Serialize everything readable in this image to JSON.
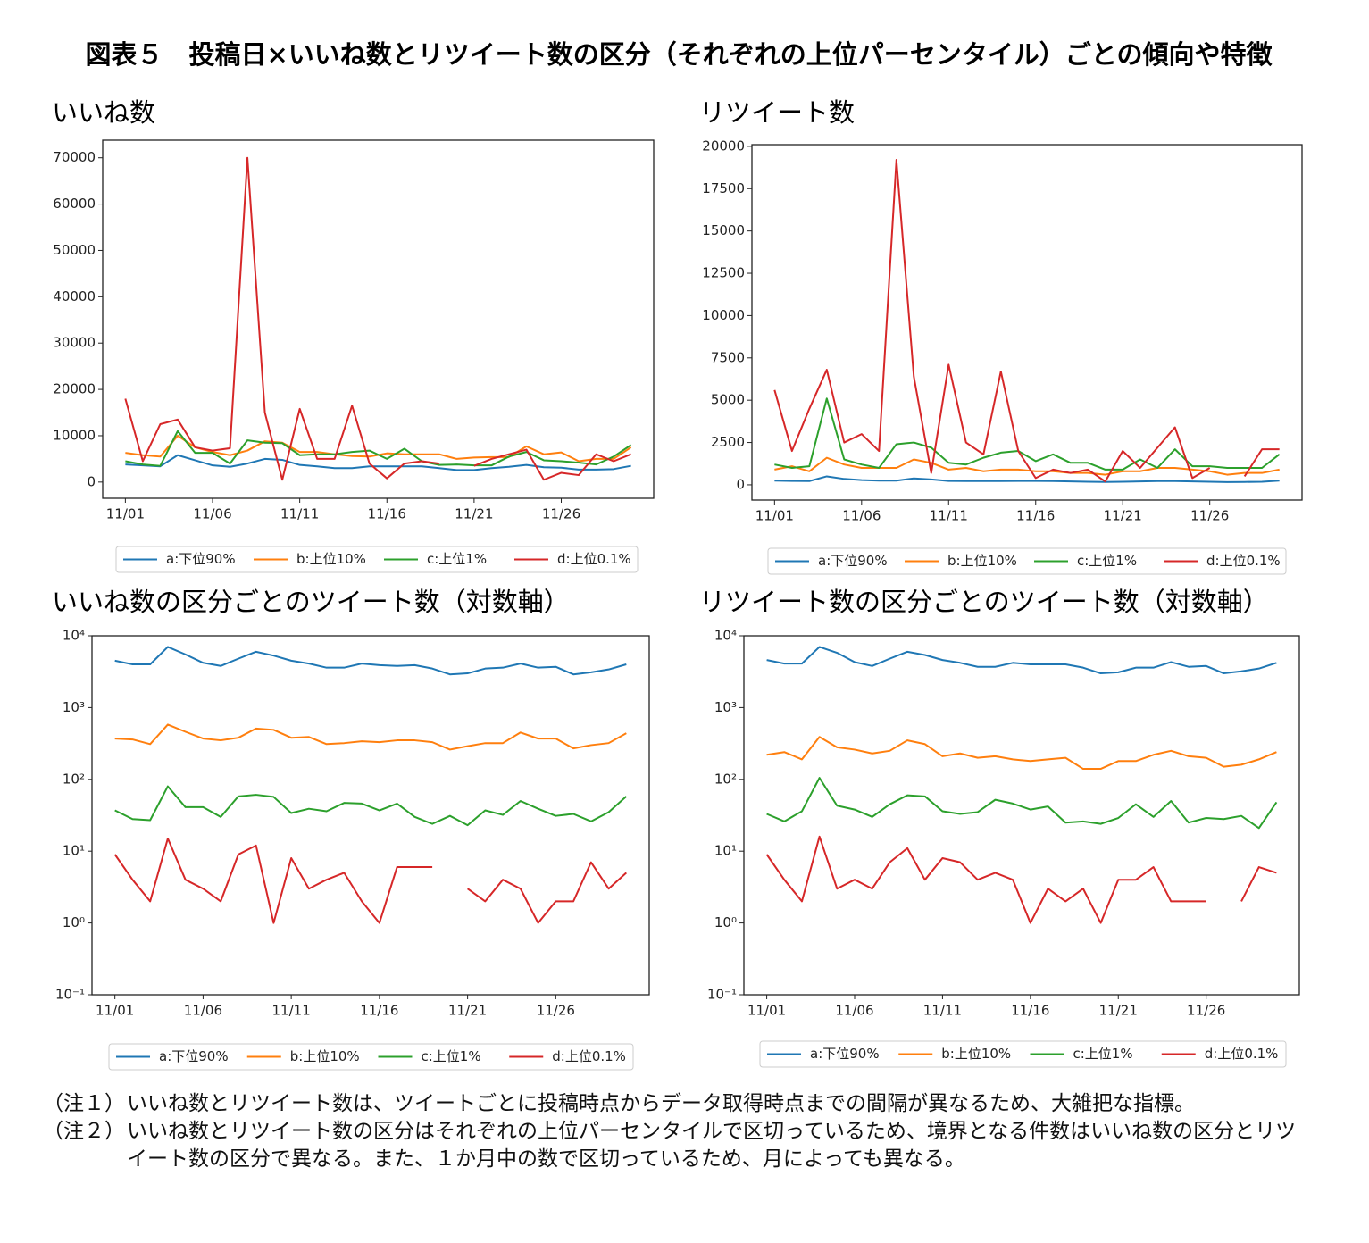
{
  "title": "図表５　投稿日×いいね数とリツイート数の区分（それぞれの上位パーセンタイル）ごとの傾向や特徴",
  "chart_data": [
    {
      "type": "line",
      "title": "いいね数",
      "categories": [
        "11/01",
        null,
        null,
        null,
        null,
        "11/06",
        null,
        null,
        null,
        null,
        "11/11",
        null,
        null,
        null,
        null,
        "11/16",
        null,
        null,
        null,
        null,
        "11/21",
        null,
        null,
        null,
        null,
        "11/26",
        null,
        null,
        null,
        null
      ],
      "ylim": [
        -3500,
        73800
      ],
      "yticks": [
        0,
        10000,
        20000,
        30000,
        40000,
        50000,
        60000,
        70000
      ],
      "log": false,
      "legend": "below",
      "series": [
        {
          "name": "a:下位90%",
          "color": "#1f77b4",
          "values": [
            3800,
            3600,
            3400,
            5800,
            4700,
            3600,
            3300,
            4000,
            5000,
            4800,
            3700,
            3400,
            3000,
            3000,
            3400,
            3400,
            3400,
            3400,
            3000,
            2600,
            2600,
            3000,
            3300,
            3700,
            3200,
            3100,
            2700,
            2700,
            2800,
            3500
          ]
        },
        {
          "name": "b:上位10%",
          "color": "#ff7f0e",
          "values": [
            6300,
            5800,
            5500,
            10000,
            7500,
            6500,
            5800,
            6800,
            8800,
            8500,
            6500,
            6500,
            6000,
            5600,
            5500,
            6200,
            6000,
            6000,
            6000,
            5000,
            5300,
            5400,
            5400,
            7700,
            6000,
            6400,
            4500,
            5000,
            5000,
            7500
          ]
        },
        {
          "name": "c:上位1%",
          "color": "#2ca02c",
          "values": [
            4500,
            3800,
            3500,
            11000,
            6300,
            6300,
            4000,
            9000,
            8500,
            8400,
            5800,
            6000,
            6000,
            6500,
            6800,
            5000,
            7200,
            4500,
            3700,
            3800,
            3600,
            3600,
            5500,
            6500,
            4700,
            4500,
            4200,
            3800,
            5500,
            8000
          ]
        },
        {
          "name": "d:上位0.1%",
          "color": "#d62728",
          "values": [
            18000,
            4500,
            12500,
            13500,
            7500,
            6800,
            7300,
            70000,
            15000,
            500,
            15800,
            5000,
            5000,
            16500,
            4000,
            800,
            4000,
            4500,
            4000,
            null,
            3500,
            5000,
            6000,
            7000,
            500,
            2000,
            1500,
            6000,
            4500,
            6000
          ]
        }
      ]
    },
    {
      "type": "line",
      "title": "リツイート数",
      "categories": [
        "11/01",
        null,
        null,
        null,
        null,
        "11/06",
        null,
        null,
        null,
        null,
        "11/11",
        null,
        null,
        null,
        null,
        "11/16",
        null,
        null,
        null,
        null,
        "11/21",
        null,
        null,
        null,
        null,
        "11/26",
        null,
        null,
        null,
        null
      ],
      "ylim": [
        -900,
        20100
      ],
      "yticks": [
        0,
        2500,
        5000,
        7500,
        10000,
        12500,
        15000,
        17500,
        20000
      ],
      "log": false,
      "legend": "below",
      "series": [
        {
          "name": "a:下位90%",
          "color": "#1f77b4",
          "values": [
            250,
            230,
            220,
            500,
            350,
            280,
            250,
            250,
            380,
            320,
            230,
            220,
            220,
            220,
            230,
            230,
            220,
            200,
            180,
            170,
            180,
            200,
            220,
            220,
            200,
            180,
            160,
            170,
            180,
            250
          ]
        },
        {
          "name": "b:上位10%",
          "color": "#ff7f0e",
          "values": [
            900,
            1100,
            800,
            1600,
            1200,
            1000,
            1000,
            1000,
            1500,
            1300,
            900,
            1000,
            800,
            900,
            900,
            800,
            800,
            700,
            700,
            600,
            800,
            800,
            1000,
            1000,
            900,
            800,
            600,
            700,
            700,
            900
          ]
        },
        {
          "name": "c:上位1%",
          "color": "#2ca02c",
          "values": [
            1200,
            1000,
            1100,
            5100,
            1500,
            1200,
            1000,
            2400,
            2500,
            2200,
            1300,
            1200,
            1600,
            1900,
            2000,
            1400,
            1800,
            1300,
            1300,
            900,
            900,
            1500,
            1000,
            2100,
            1100,
            1100,
            1000,
            1000,
            1000,
            1800
          ]
        },
        {
          "name": "d:上位0.1%",
          "color": "#d62728",
          "values": [
            5600,
            2000,
            4500,
            6800,
            2500,
            3000,
            2000,
            19200,
            6400,
            700,
            7100,
            2500,
            1800,
            6700,
            2000,
            400,
            900,
            700,
            900,
            200,
            2000,
            1000,
            2200,
            3400,
            400,
            1000,
            null,
            500,
            2100,
            2100
          ]
        }
      ]
    },
    {
      "type": "line",
      "title": "いいね数の区分ごとのツイート数（対数軸）",
      "categories": [
        "11/01",
        null,
        null,
        null,
        null,
        "11/06",
        null,
        null,
        null,
        null,
        "11/11",
        null,
        null,
        null,
        null,
        "11/16",
        null,
        null,
        null,
        null,
        "11/21",
        null,
        null,
        null,
        null,
        "11/26",
        null,
        null,
        null,
        null
      ],
      "ylim": [
        0.1,
        10000
      ],
      "yticks": [
        {
          "value": 0.1,
          "label": "10⁻¹"
        },
        {
          "value": 1,
          "label": "10⁰"
        },
        {
          "value": 10,
          "label": "10¹"
        },
        {
          "value": 100,
          "label": "10²"
        },
        {
          "value": 1000,
          "label": "10³"
        },
        {
          "value": 10000,
          "label": "10⁴"
        }
      ],
      "log": true,
      "legend": "below",
      "series": [
        {
          "name": "a:下位90%",
          "color": "#1f77b4",
          "values": [
            4500,
            4000,
            4000,
            7000,
            5500,
            4200,
            3800,
            4800,
            6000,
            5300,
            4500,
            4100,
            3600,
            3600,
            4100,
            3900,
            3800,
            3900,
            3500,
            2900,
            3000,
            3500,
            3600,
            4100,
            3600,
            3700,
            2900,
            3100,
            3400,
            4000
          ]
        },
        {
          "name": "b:上位10%",
          "color": "#ff7f0e",
          "values": [
            370,
            360,
            310,
            580,
            460,
            370,
            350,
            380,
            510,
            490,
            380,
            390,
            310,
            320,
            340,
            330,
            350,
            350,
            330,
            260,
            290,
            320,
            320,
            450,
            370,
            370,
            270,
            300,
            320,
            440
          ]
        },
        {
          "name": "c:上位1%",
          "color": "#2ca02c",
          "values": [
            37,
            28,
            27,
            80,
            41,
            41,
            30,
            58,
            61,
            57,
            34,
            39,
            36,
            47,
            46,
            37,
            46,
            30,
            24,
            31,
            23,
            37,
            32,
            50,
            39,
            31,
            33,
            26,
            35,
            58
          ]
        },
        {
          "name": "d:上位0.1%",
          "color": "#d62728",
          "values": [
            9,
            4,
            2,
            15,
            4,
            3,
            2,
            9,
            12,
            1,
            8,
            3,
            4,
            5,
            2,
            1,
            6,
            6,
            6,
            null,
            3,
            2,
            4,
            3,
            1,
            2,
            2,
            7,
            3,
            5
          ]
        }
      ]
    },
    {
      "type": "line",
      "title": "リツイート数の区分ごとのツイート数（対数軸）",
      "categories": [
        "11/01",
        null,
        null,
        null,
        null,
        "11/06",
        null,
        null,
        null,
        null,
        "11/11",
        null,
        null,
        null,
        null,
        "11/16",
        null,
        null,
        null,
        null,
        "11/21",
        null,
        null,
        null,
        null,
        "11/26",
        null,
        null,
        null,
        null
      ],
      "ylim": [
        0.1,
        10000
      ],
      "yticks": [
        {
          "value": 0.1,
          "label": "10⁻¹"
        },
        {
          "value": 1,
          "label": "10⁰"
        },
        {
          "value": 10,
          "label": "10¹"
        },
        {
          "value": 100,
          "label": "10²"
        },
        {
          "value": 1000,
          "label": "10³"
        },
        {
          "value": 10000,
          "label": "10⁴"
        }
      ],
      "log": true,
      "legend": "below",
      "series": [
        {
          "name": "a:下位90%",
          "color": "#1f77b4",
          "values": [
            4600,
            4100,
            4100,
            7000,
            5800,
            4300,
            3800,
            4800,
            6000,
            5400,
            4600,
            4200,
            3700,
            3700,
            4200,
            4000,
            4000,
            4000,
            3600,
            3000,
            3100,
            3600,
            3600,
            4300,
            3700,
            3800,
            3000,
            3200,
            3500,
            4200
          ]
        },
        {
          "name": "b:上位10%",
          "color": "#ff7f0e",
          "values": [
            220,
            240,
            190,
            390,
            280,
            260,
            230,
            250,
            350,
            310,
            210,
            230,
            200,
            210,
            190,
            180,
            190,
            200,
            140,
            140,
            180,
            180,
            220,
            250,
            210,
            200,
            150,
            160,
            190,
            240
          ]
        },
        {
          "name": "c:上位1%",
          "color": "#2ca02c",
          "values": [
            33,
            26,
            36,
            105,
            43,
            38,
            30,
            45,
            60,
            58,
            36,
            33,
            35,
            52,
            46,
            38,
            42,
            25,
            26,
            24,
            29,
            45,
            30,
            50,
            25,
            29,
            28,
            31,
            21,
            48
          ]
        },
        {
          "name": "d:上位0.1%",
          "color": "#d62728",
          "values": [
            9,
            4,
            2,
            16,
            3,
            4,
            3,
            7,
            11,
            4,
            8,
            7,
            4,
            5,
            4,
            1,
            3,
            2,
            3,
            1,
            4,
            4,
            6,
            2,
            2,
            2,
            null,
            2,
            6,
            5
          ]
        }
      ]
    }
  ],
  "notes": [
    {
      "label": "（注１）",
      "text": "いいね数とリツイート数は、ツイートごとに投稿時点からデータ取得時点までの間隔が異なるため、大雑把な指標。"
    },
    {
      "label": "（注２）",
      "text": "いいね数とリツイート数の区分はそれぞれの上位パーセンタイルで区切っているため、境界となる件数はいいね数の区分とリツイート数の区分で異なる。また、１か月中の数で区切っているため、月によっても異なる。"
    }
  ]
}
